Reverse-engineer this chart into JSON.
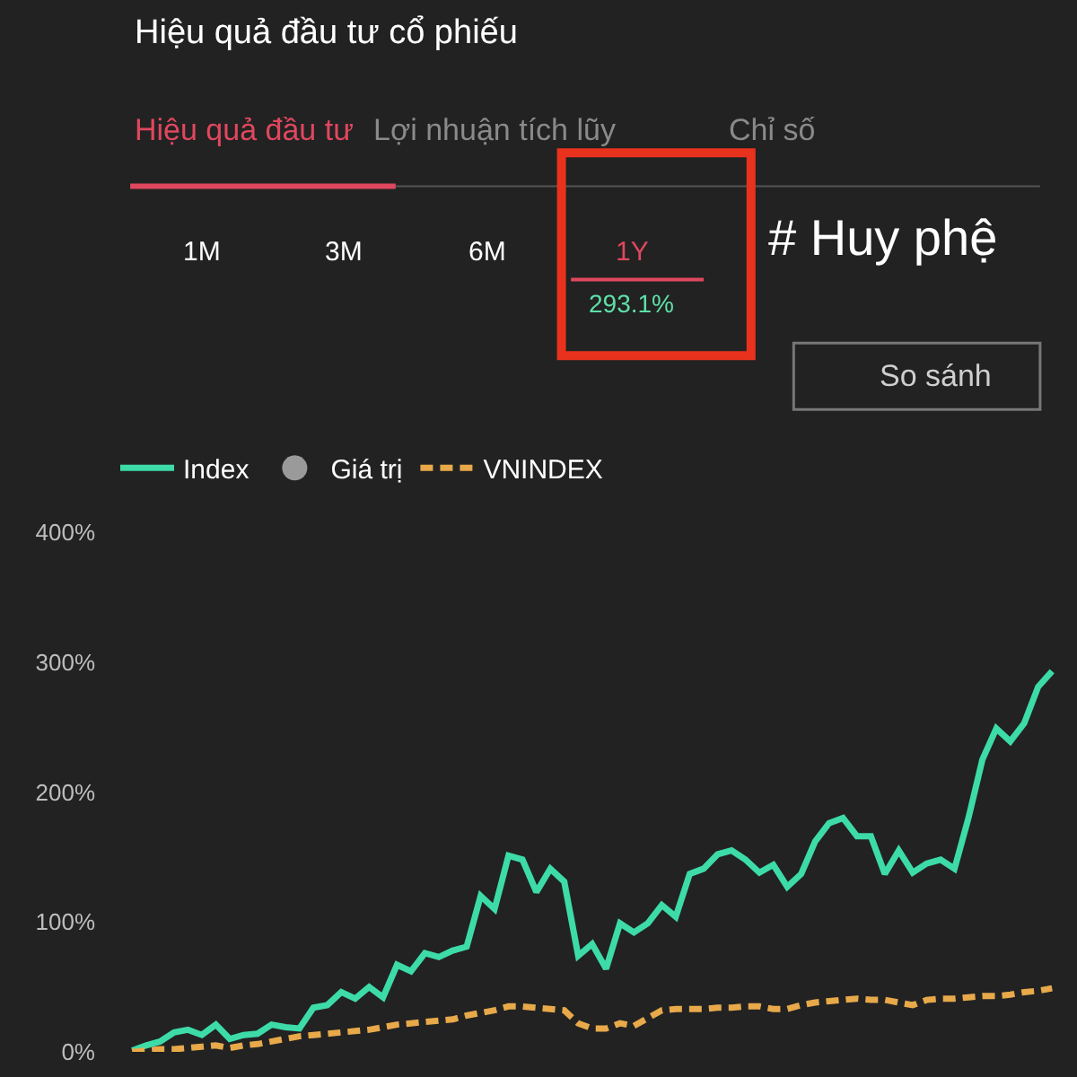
{
  "chart_data": {
    "type": "line",
    "title": "Hiệu quả đầu tư cổ phiếu",
    "annotations": [
      "Hiệu quả đầu tư",
      "Lợi nhuận tích lũy",
      "Chỉ số",
      "1M",
      "3M",
      "6M",
      "1Y",
      "293.1%",
      "# Huy phệ",
      "So sánh"
    ],
    "categories": [
      null,
      null,
      null,
      null,
      null,
      null,
      null,
      null,
      null,
      null,
      null,
      null,
      null,
      null,
      null,
      null,
      null,
      null,
      null,
      null,
      null,
      null,
      null,
      null,
      null,
      null,
      null,
      null,
      null,
      null,
      null,
      null,
      null,
      null,
      null,
      null,
      null,
      null,
      null,
      null,
      null,
      null,
      null,
      null,
      null,
      null,
      null,
      null,
      null,
      null,
      null,
      null,
      null,
      null,
      null,
      null,
      null,
      null,
      null,
      null,
      null,
      null,
      null,
      null,
      null,
      null,
      null
    ],
    "series": [
      {
        "name": "Index",
        "color": "#3ddba8",
        "line_style": "solid",
        "values": [
          1,
          5,
          8,
          15,
          17,
          13,
          21,
          10,
          13,
          14,
          21,
          19,
          18,
          34,
          36,
          46,
          41,
          50,
          42,
          67,
          62,
          76,
          73,
          78,
          81,
          120,
          110,
          151,
          148,
          123,
          141,
          131,
          74,
          83,
          64,
          99,
          92,
          99,
          113,
          104,
          137,
          141,
          152,
          155,
          148,
          138,
          144,
          127,
          137,
          162,
          176,
          180,
          166,
          166,
          137,
          155,
          138,
          145,
          148,
          141,
          180,
          225,
          249,
          239,
          253,
          281,
          293
        ]
      },
      {
        "name": "Giá trị",
        "color": "#9a9a9a",
        "type": "scatter",
        "marker": "circle",
        "values": [
          null,
          null,
          null,
          null,
          null,
          null,
          null,
          null,
          null,
          null,
          null,
          null,
          null,
          null,
          null,
          null,
          null,
          null,
          null,
          null,
          null,
          null,
          null,
          null,
          null,
          null,
          null,
          null,
          null,
          null,
          null,
          null,
          null,
          null,
          null,
          null,
          null,
          null,
          null,
          null,
          null,
          null,
          null,
          null,
          null,
          null,
          null,
          null,
          null,
          null,
          null,
          null,
          null,
          null,
          null,
          null,
          null,
          null,
          null,
          null,
          null,
          null,
          null,
          null,
          null,
          null,
          null
        ]
      },
      {
        "name": "VNINDEX",
        "color": "#e8a94a",
        "line_style": "dashed",
        "values": [
          0,
          1,
          2,
          2,
          3,
          4,
          5,
          3,
          5,
          6,
          8,
          10,
          12,
          13,
          14,
          15,
          16,
          17,
          19,
          21,
          22,
          23,
          24,
          25,
          28,
          30,
          32,
          35,
          35,
          34,
          33,
          32,
          22,
          18,
          18,
          22,
          20,
          26,
          32,
          33,
          33,
          33,
          34,
          34,
          35,
          35,
          33,
          33,
          36,
          38,
          39,
          40,
          41,
          40,
          40,
          38,
          36,
          40,
          41,
          41,
          42,
          43,
          43,
          44,
          46,
          47,
          49
        ]
      }
    ],
    "ylim": [
      0,
      400
    ],
    "yticks": [
      {
        "value": 0,
        "label": "0%"
      },
      {
        "value": 100,
        "label": "100%"
      },
      {
        "value": 200,
        "label": "200%"
      },
      {
        "value": 300,
        "label": "300%"
      },
      {
        "value": 400,
        "label": "400%"
      }
    ],
    "tick_labels": "y",
    "grid": false,
    "legend": "top left"
  }
}
